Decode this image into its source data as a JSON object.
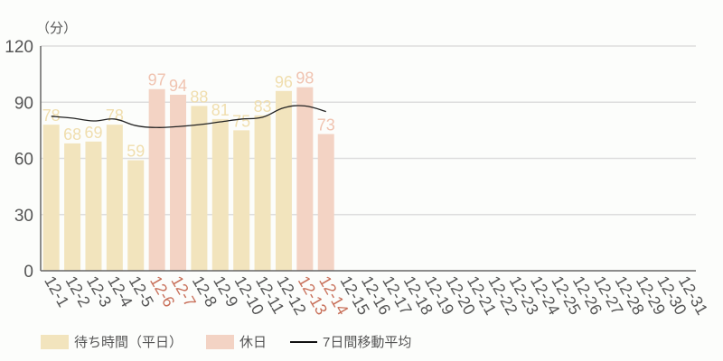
{
  "chart_data": {
    "type": "bar",
    "title": "",
    "unit_label": "（分）",
    "xlabel": "",
    "ylabel": "（分）",
    "ylim": [
      0,
      120
    ],
    "yticks": [
      0,
      30,
      60,
      90,
      120
    ],
    "grid": true,
    "legend_position": "bottom",
    "categories": [
      "12-1",
      "12-2",
      "12-3",
      "12-4",
      "12-5",
      "12-6",
      "12-7",
      "12-8",
      "12-9",
      "12-10",
      "12-11",
      "12-12",
      "12-13",
      "12-14",
      "12-15",
      "12-16",
      "12-17",
      "12-18",
      "12-19",
      "12-20",
      "12-21",
      "12-22",
      "12-23",
      "12-24",
      "12-25",
      "12-26",
      "12-27",
      "12-28",
      "12-29",
      "12-30",
      "12-31"
    ],
    "holidays": [
      "12-6",
      "12-7",
      "12-13",
      "12-14"
    ],
    "series": [
      {
        "name": "待ち時間（平日）/休日",
        "type": "bar",
        "values": [
          78,
          68,
          69,
          78,
          59,
          97,
          94,
          88,
          81,
          75,
          83,
          96,
          98,
          73,
          null,
          null,
          null,
          null,
          null,
          null,
          null,
          null,
          null,
          null,
          null,
          null,
          null,
          null,
          null,
          null,
          null
        ]
      },
      {
        "name": "7日間移動平均",
        "type": "line",
        "values": [
          82.5,
          81.5,
          80,
          81,
          77.5,
          76.5,
          77,
          78,
          79.5,
          81,
          82,
          87,
          88,
          85,
          null,
          null,
          null,
          null,
          null,
          null,
          null,
          null,
          null,
          null,
          null,
          null,
          null,
          null,
          null,
          null,
          null
        ]
      }
    ],
    "colors": {
      "weekday": "#f2e4bd",
      "holiday": "#f3d3c4",
      "weekday_label": "#f0deae",
      "holiday_label": "#f0c3b0",
      "holiday_tick": "#c8705a",
      "tick": "#555555",
      "line": "#222222",
      "grid": "#dddddd",
      "axis": "#666666"
    }
  },
  "legend": {
    "items": [
      {
        "label": "待ち時間（平日）",
        "color": "#f2e4bd",
        "kind": "bar"
      },
      {
        "label": "休日",
        "color": "#f3d3c4",
        "kind": "bar"
      },
      {
        "label": "7日間移動平均",
        "color": "#111111",
        "kind": "line"
      }
    ]
  }
}
